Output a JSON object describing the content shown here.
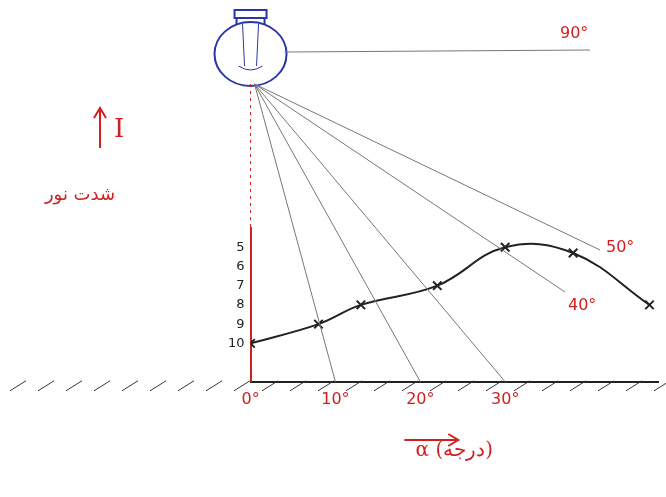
{
  "chart_data": {
    "type": "line",
    "x_axis_title": "α (درجه)",
    "y_axis_title": "I",
    "y_axis_note": "شدت نور",
    "ray_labels": [
      "90°",
      "50°",
      "40°"
    ],
    "x": [
      0,
      8,
      13,
      22,
      30,
      38,
      47
    ],
    "values": [
      10,
      9,
      8,
      7,
      5,
      5.3,
      8
    ],
    "color": "#222222",
    "marker": "cross",
    "line_style": "solid",
    "xlim": [
      0,
      48
    ],
    "xticks": [
      {
        "value": 0,
        "label": "0°"
      },
      {
        "value": 10,
        "label": "10°"
      },
      {
        "value": 20,
        "label": "20°"
      },
      {
        "value": 30,
        "label": "30°"
      }
    ],
    "ylim": [
      12,
      4
    ],
    "yticks": [
      10,
      9,
      8,
      7,
      6,
      5
    ],
    "grid": false
  }
}
